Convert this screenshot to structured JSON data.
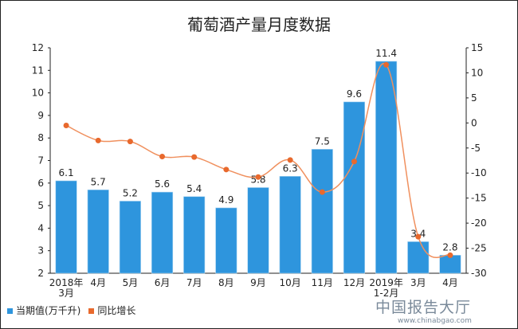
{
  "chart_data": {
    "type": "bar+line",
    "title": "葡萄酒产量月度数据",
    "categories": [
      "2018年\n3月",
      "4月",
      "5月",
      "6月",
      "7月",
      "8月",
      "9月",
      "10月",
      "11月",
      "12月",
      "2019年\n1-2月",
      "3月",
      "4月"
    ],
    "series": [
      {
        "name": "当期值(万千升)",
        "type": "bar",
        "axis": "left",
        "color": "#2e95dd",
        "values": [
          6.1,
          5.7,
          5.2,
          5.6,
          5.4,
          4.9,
          5.8,
          6.3,
          7.5,
          9.6,
          11.4,
          3.4,
          2.8
        ],
        "data_labels": [
          "6.1",
          "5.7",
          "5.2",
          "5.6",
          "5.4",
          "4.9",
          "5.8",
          "6.3",
          "7.5",
          "9.6",
          "11.4",
          "3.4",
          "2.8"
        ]
      },
      {
        "name": "同比增长",
        "type": "line",
        "axis": "right",
        "color": "#e8692d",
        "values": [
          -0.5,
          -3.5,
          -3.7,
          -6.7,
          -6.8,
          -9.3,
          -10.8,
          -7.4,
          -13.8,
          -7.7,
          11.6,
          -22.7,
          -26.4
        ]
      }
    ],
    "left_axis": {
      "ylim": [
        2,
        12
      ],
      "ticks": [
        "2",
        "3",
        "4",
        "5",
        "6",
        "7",
        "8",
        "9",
        "10",
        "11",
        "12"
      ]
    },
    "right_axis": {
      "ylim": [
        -30,
        15
      ],
      "ticks": [
        "-30",
        "-25",
        "-20",
        "-15",
        "-10",
        "-5",
        "0",
        "5",
        "10",
        "15"
      ]
    },
    "grid": false,
    "legend_position": "bottom-left"
  },
  "watermark": {
    "name": "中国报告大厅",
    "url": "www.chinabgao.com"
  }
}
